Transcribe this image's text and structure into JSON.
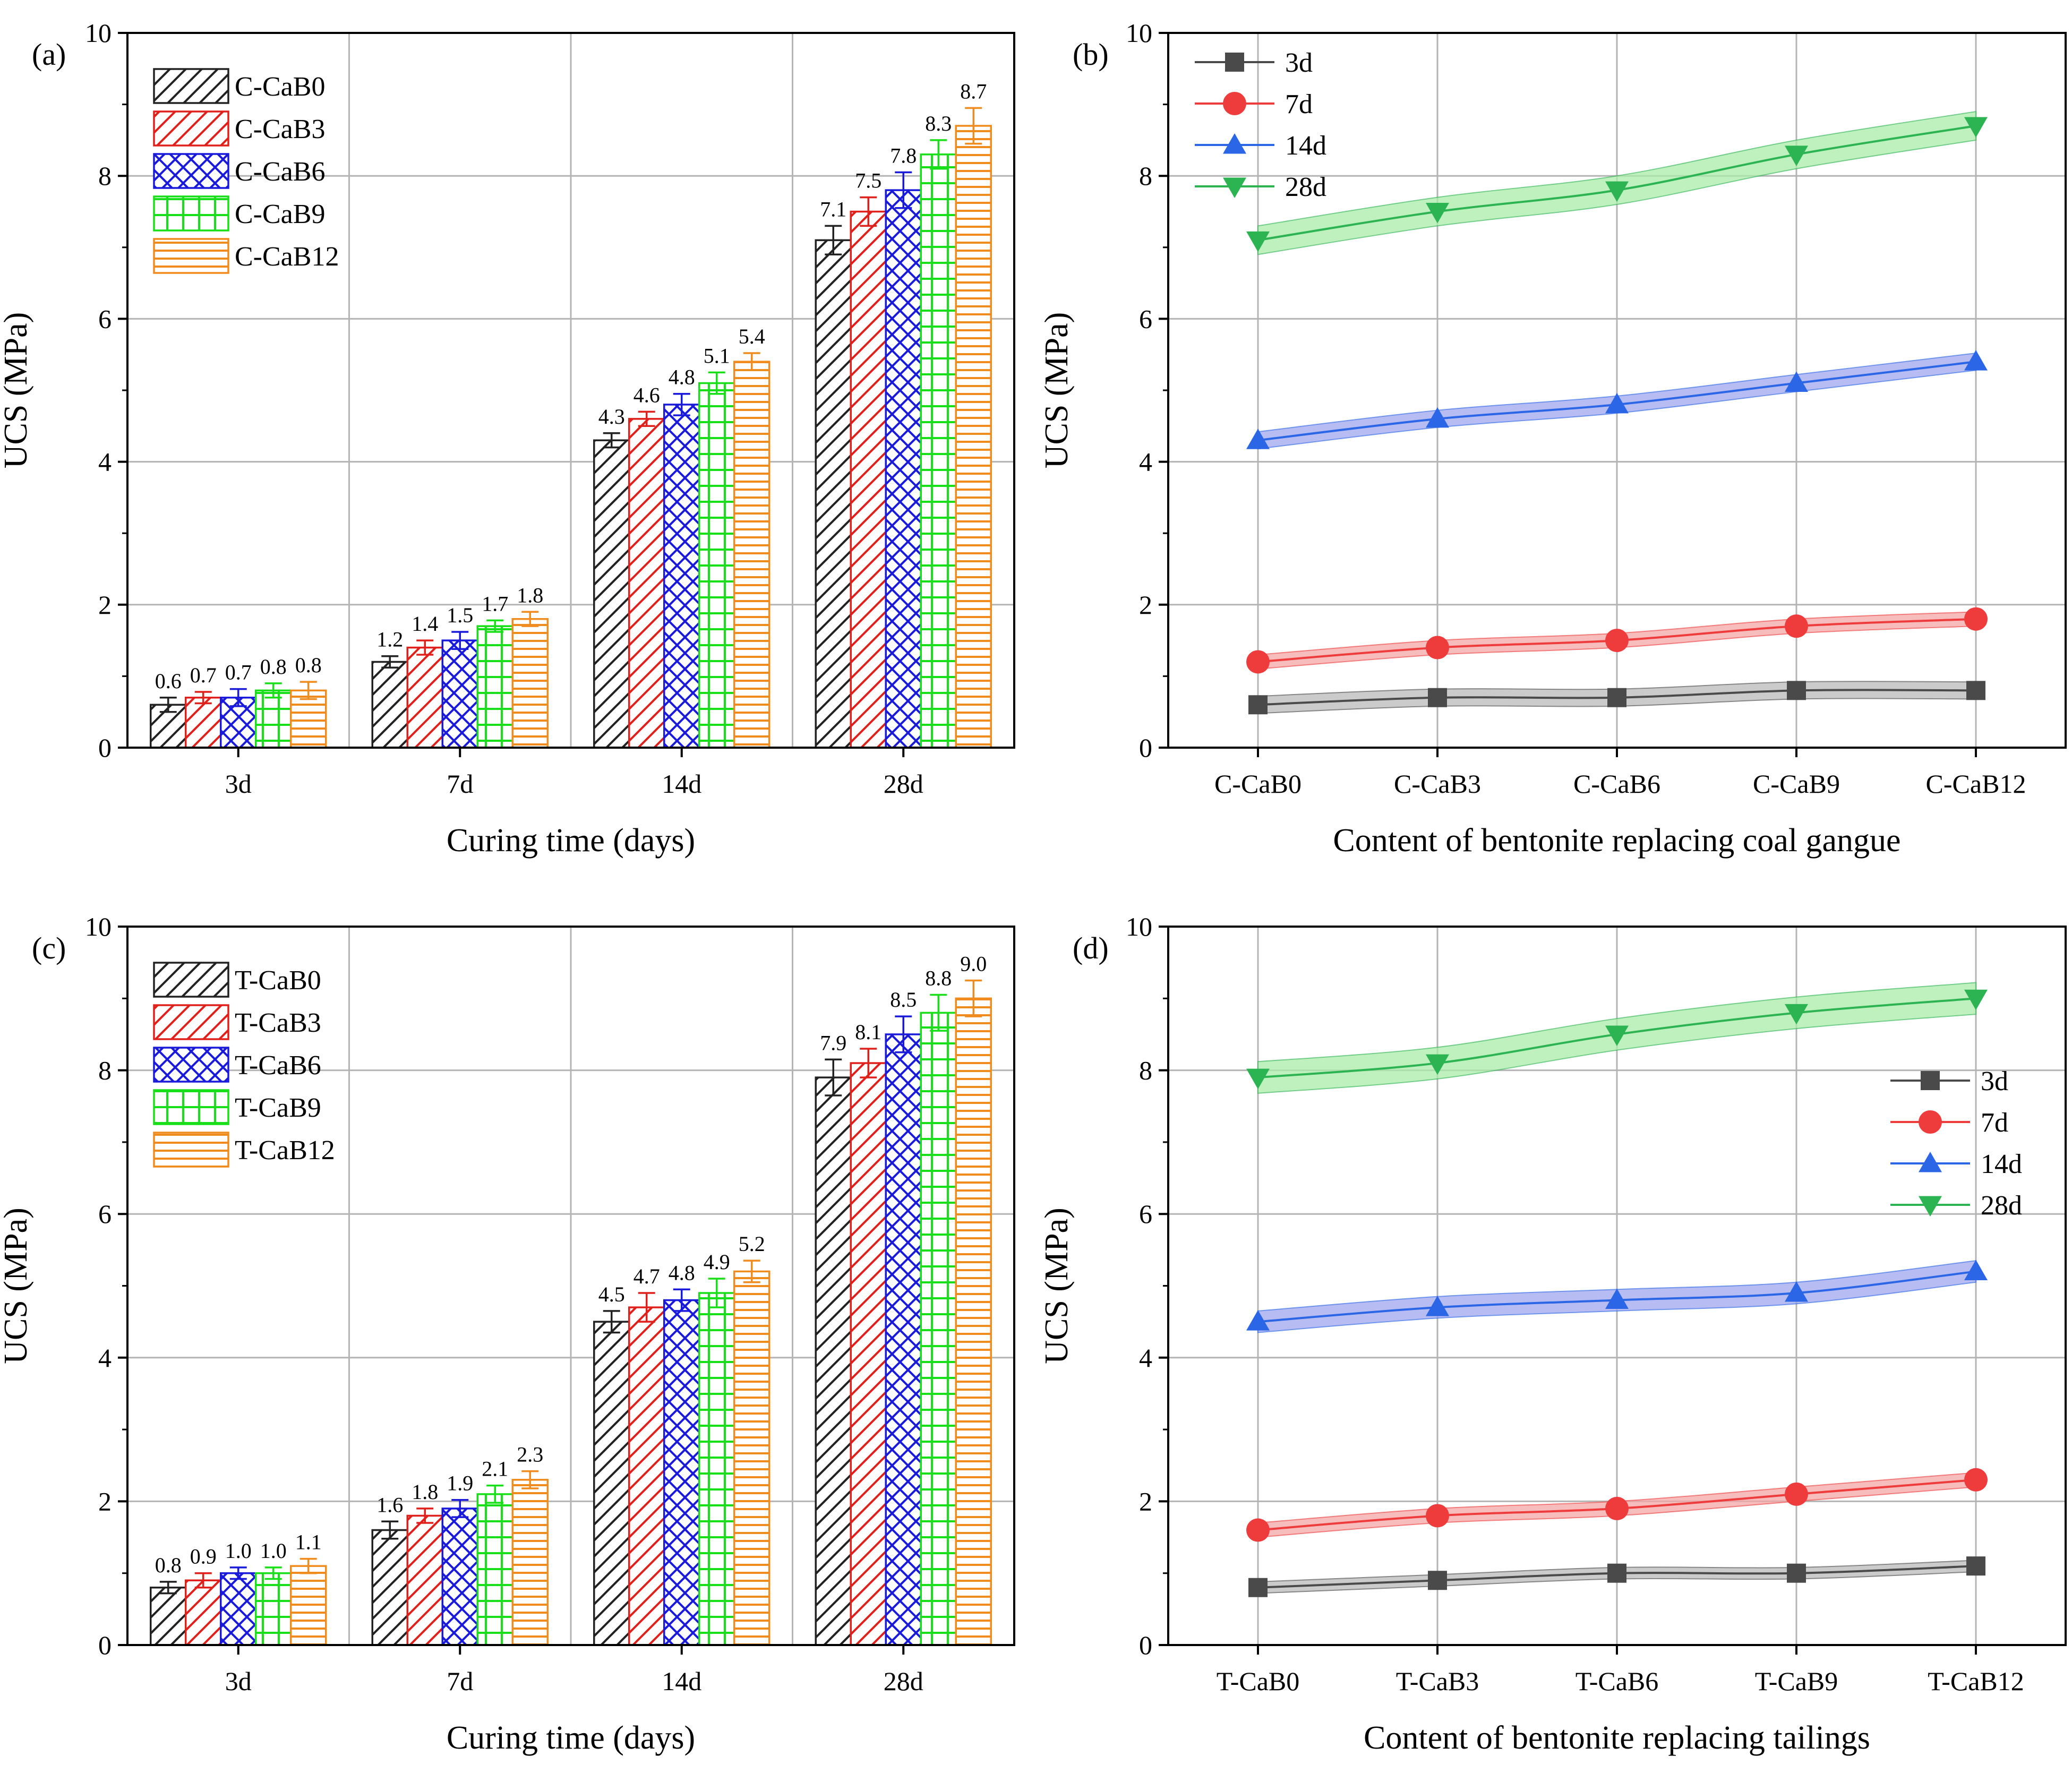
{
  "chart_data": [
    {
      "type": "bar",
      "panel_label": "(a)",
      "xlabel": "Curing time (days)",
      "ylabel": "UCS (MPa)",
      "ylim": [
        0,
        10
      ],
      "yticks": [
        "0",
        "2",
        "4",
        "6",
        "8",
        "10"
      ],
      "categories": [
        "3d",
        "7d",
        "14d",
        "28d"
      ],
      "series": [
        {
          "name": "C-CaB0",
          "color": "#222222",
          "pattern": "diag",
          "values": [
            0.6,
            1.2,
            4.3,
            7.1
          ],
          "labels": [
            "0.6",
            "1.2",
            "4.3",
            "7.1"
          ],
          "errors": [
            0.1,
            0.08,
            0.1,
            0.2
          ]
        },
        {
          "name": "C-CaB3",
          "color": "#e0201b",
          "pattern": "diag",
          "values": [
            0.7,
            1.4,
            4.6,
            7.5
          ],
          "labels": [
            "0.7",
            "1.4",
            "4.6",
            "7.5"
          ],
          "errors": [
            0.08,
            0.1,
            0.1,
            0.2
          ]
        },
        {
          "name": "C-CaB6",
          "color": "#1a1adb",
          "pattern": "cross",
          "values": [
            0.7,
            1.5,
            4.8,
            7.8
          ],
          "labels": [
            "0.7",
            "1.5",
            "4.8",
            "7.8"
          ],
          "errors": [
            0.12,
            0.12,
            0.15,
            0.25
          ]
        },
        {
          "name": "C-CaB9",
          "color": "#18e018",
          "pattern": "grid",
          "values": [
            0.8,
            1.7,
            5.1,
            8.3
          ],
          "labels": [
            "0.8",
            "1.7",
            "5.1",
            "8.3"
          ],
          "errors": [
            0.1,
            0.08,
            0.15,
            0.2
          ]
        },
        {
          "name": "C-CaB12",
          "color": "#f08c1e",
          "pattern": "horiz",
          "values": [
            0.8,
            1.8,
            5.4,
            8.7
          ],
          "labels": [
            "0.8",
            "1.8",
            "5.4",
            "8.7"
          ],
          "errors": [
            0.12,
            0.1,
            0.12,
            0.25
          ]
        }
      ]
    },
    {
      "type": "line",
      "panel_label": "(b)",
      "xlabel": "Content of bentonite replacing coal gangue",
      "ylabel": "UCS (MPa)",
      "ylim": [
        0,
        10
      ],
      "yticks": [
        "0",
        "2",
        "4",
        "6",
        "8",
        "10"
      ],
      "categories": [
        "C-CaB0",
        "C-CaB3",
        "C-CaB6",
        "C-CaB9",
        "C-CaB12"
      ],
      "legend_position": "top-left",
      "series": [
        {
          "name": "3d",
          "color": "#4a4a4a",
          "band": "#b9b9b9",
          "marker": "square",
          "values": [
            0.6,
            0.7,
            0.7,
            0.8,
            0.8
          ],
          "band_width": 0.12
        },
        {
          "name": "7d",
          "color": "#ee3b3b",
          "band": "#f4a6a6",
          "marker": "circle",
          "values": [
            1.2,
            1.4,
            1.5,
            1.7,
            1.8
          ],
          "band_width": 0.1
        },
        {
          "name": "14d",
          "color": "#2a66e6",
          "band": "#9fa5ee",
          "marker": "triangle-up",
          "values": [
            4.3,
            4.6,
            4.8,
            5.1,
            5.4
          ],
          "band_width": 0.12
        },
        {
          "name": "28d",
          "color": "#2cb352",
          "band": "#a9ecaa",
          "marker": "triangle-down",
          "values": [
            7.1,
            7.5,
            7.8,
            8.3,
            8.7
          ],
          "band_width": 0.2
        }
      ]
    },
    {
      "type": "bar",
      "panel_label": "(c)",
      "xlabel": "Curing time (days)",
      "ylabel": "UCS (MPa)",
      "ylim": [
        0,
        10
      ],
      "yticks": [
        "0",
        "2",
        "4",
        "6",
        "8",
        "10"
      ],
      "categories": [
        "3d",
        "7d",
        "14d",
        "28d"
      ],
      "series": [
        {
          "name": "T-CaB0",
          "color": "#222222",
          "pattern": "diag",
          "values": [
            0.8,
            1.6,
            4.5,
            7.9
          ],
          "labels": [
            "0.8",
            "1.6",
            "4.5",
            "7.9"
          ],
          "errors": [
            0.08,
            0.12,
            0.15,
            0.25
          ]
        },
        {
          "name": "T-CaB3",
          "color": "#e0201b",
          "pattern": "diag",
          "values": [
            0.9,
            1.8,
            4.7,
            8.1
          ],
          "labels": [
            "0.9",
            "1.8",
            "4.7",
            "8.1"
          ],
          "errors": [
            0.1,
            0.1,
            0.2,
            0.2
          ]
        },
        {
          "name": "T-CaB6",
          "color": "#1a1adb",
          "pattern": "cross",
          "values": [
            1.0,
            1.9,
            4.8,
            8.5
          ],
          "labels": [
            "1.0",
            "1.9",
            "4.8",
            "8.5"
          ],
          "errors": [
            0.08,
            0.12,
            0.15,
            0.25
          ]
        },
        {
          "name": "T-CaB9",
          "color": "#18e018",
          "pattern": "grid",
          "values": [
            1.0,
            2.1,
            4.9,
            8.8
          ],
          "labels": [
            "1.0",
            "2.1",
            "4.9",
            "8.8"
          ],
          "errors": [
            0.08,
            0.12,
            0.2,
            0.25
          ]
        },
        {
          "name": "T-CaB12",
          "color": "#f08c1e",
          "pattern": "horiz",
          "values": [
            1.1,
            2.3,
            5.2,
            9.0
          ],
          "labels": [
            "1.1",
            "2.3",
            "5.2",
            "9.0"
          ],
          "errors": [
            0.1,
            0.12,
            0.15,
            0.25
          ]
        }
      ]
    },
    {
      "type": "line",
      "panel_label": "(d)",
      "xlabel": "Content of bentonite replacing tailings",
      "ylabel": "UCS (MPa)",
      "ylim": [
        0,
        10
      ],
      "yticks": [
        "0",
        "2",
        "4",
        "6",
        "8",
        "10"
      ],
      "categories": [
        "T-CaB0",
        "T-CaB3",
        "T-CaB6",
        "T-CaB9",
        "T-CaB12"
      ],
      "legend_position": "right",
      "series": [
        {
          "name": "3d",
          "color": "#4a4a4a",
          "band": "#b9b9b9",
          "marker": "square",
          "values": [
            0.8,
            0.9,
            1.0,
            1.0,
            1.1
          ],
          "band_width": 0.08
        },
        {
          "name": "7d",
          "color": "#ee3b3b",
          "band": "#f4a6a6",
          "marker": "circle",
          "values": [
            1.6,
            1.8,
            1.9,
            2.1,
            2.3
          ],
          "band_width": 0.1
        },
        {
          "name": "14d",
          "color": "#2a66e6",
          "band": "#9fa5ee",
          "marker": "triangle-up",
          "values": [
            4.5,
            4.7,
            4.8,
            4.9,
            5.2
          ],
          "band_width": 0.15
        },
        {
          "name": "28d",
          "color": "#2cb352",
          "band": "#a9ecaa",
          "marker": "triangle-down",
          "values": [
            7.9,
            8.1,
            8.5,
            8.8,
            9.0
          ],
          "band_width": 0.22
        }
      ]
    }
  ]
}
